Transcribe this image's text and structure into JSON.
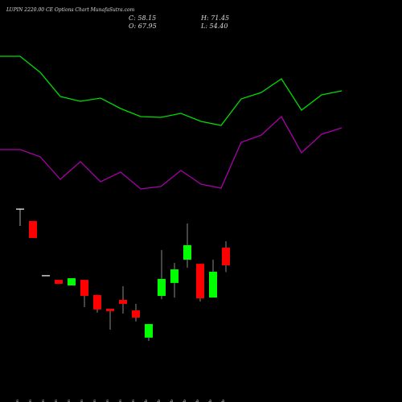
{
  "chart_data": [
    {
      "type": "candlestick",
      "title": "LUPIN 2220.00 CE Options Chart MunafaSutra.com",
      "summary": [
        "C: 58.15",
        "H: 71.45",
        "O: 67.95",
        "L: 54.40"
      ],
      "categories": [
        "07 Jan",
        "14 Jan",
        "16 Jan",
        "21 Jan",
        "23 Jan",
        "27 Jan",
        "28 Jan",
        "29 Jan",
        "30 Jan",
        "31 Jan",
        "01 Feb",
        "03 Feb",
        "04 Feb",
        "05 Feb",
        "06 Feb",
        "07 Feb",
        "10 Feb"
      ],
      "open": [
        89.3,
        82.7,
        52.4,
        50.1,
        47.0,
        50.1,
        41.7,
        34.1,
        39.0,
        33.2,
        18.1,
        41.2,
        48.4,
        61.3,
        59.0,
        40.3,
        67.95
      ],
      "high": [
        89.3,
        82.7,
        52.4,
        50.1,
        51.0,
        50.1,
        41.7,
        34.1,
        46.6,
        36.8,
        25.6,
        66.6,
        59.5,
        81.3,
        59.0,
        61.3,
        71.45
      ],
      "low": [
        80.0,
        73.3,
        52.4,
        47.9,
        47.0,
        35.0,
        31.9,
        22.5,
        31.4,
        27.0,
        16.3,
        39.4,
        40.3,
        56.8,
        38.1,
        40.3,
        54.4
      ],
      "close": [
        89.3,
        73.3,
        52.4,
        47.9,
        51.0,
        41.2,
        33.7,
        32.8,
        36.8,
        29.2,
        25.6,
        50.6,
        55.9,
        69.3,
        39.9,
        54.6,
        58.15
      ],
      "ylim": [
        13.6,
        93.8
      ],
      "up_color": "#00ff00",
      "down_color": "#ff0000",
      "flat_color": "#ffffff"
    },
    {
      "type": "line",
      "categories": [
        null,
        null,
        null,
        null,
        null,
        null,
        null,
        null,
        null,
        null,
        null,
        null,
        null,
        null,
        null,
        null,
        null,
        null
      ],
      "ylim": [
        0,
        100
      ],
      "series": [
        {
          "color": "#00dd00",
          "values": [
            90,
            90,
            80,
            65,
            62,
            64,
            57.5,
            52.5,
            52,
            54.5,
            49.5,
            47,
            63.5,
            67.5,
            76,
            56.5,
            66,
            68.5
          ]
        },
        {
          "color": "#aa00aa",
          "values": [
            32,
            32,
            27.5,
            13.5,
            24.5,
            12,
            18,
            7.5,
            9,
            19,
            10.5,
            8,
            36.5,
            41,
            52.5,
            30,
            41.5,
            45.5
          ]
        }
      ]
    }
  ]
}
